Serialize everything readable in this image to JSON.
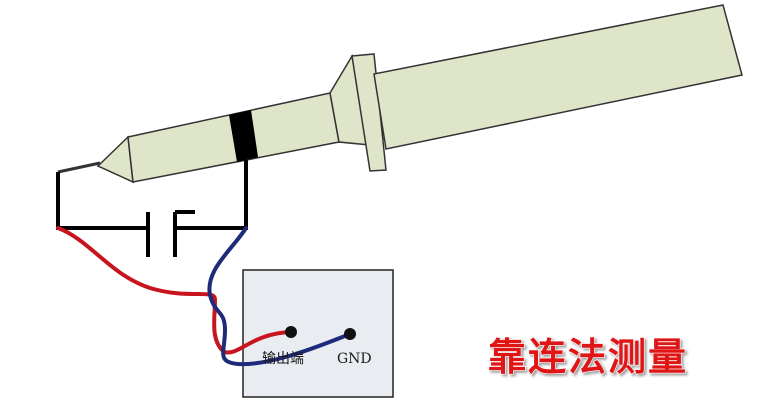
{
  "labels": {
    "output_terminal": "输出端",
    "ground": "GND",
    "title": "靠连法测量"
  },
  "colors": {
    "probe_body": "#dfe5c8",
    "probe_outline": "#333333",
    "band": "#000000",
    "wire_red": "#c8141e",
    "wire_blue": "#1e2a7a",
    "box_fill": "#e9edf2",
    "title_fill": "#e01818",
    "title_outline": "#ffffff"
  }
}
